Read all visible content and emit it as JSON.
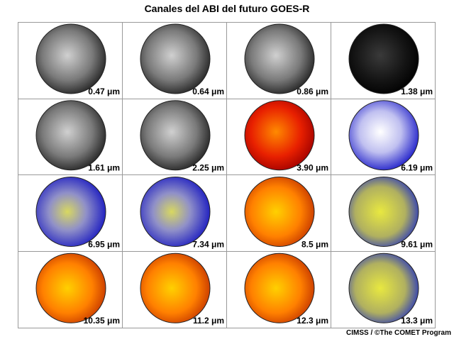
{
  "title": "Canales del ABI del futuro GOES-R",
  "panels": [
    {
      "label": "0.47 μm"
    },
    {
      "label": "0.64 μm"
    },
    {
      "label": "0.86 μm"
    },
    {
      "label": "1.38 μm"
    },
    {
      "label": "1.61 μm"
    },
    {
      "label": "2.25 μm"
    },
    {
      "label": "3.90 μm"
    },
    {
      "label": "6.19 μm"
    },
    {
      "label": "6.95 μm"
    },
    {
      "label": "7.34 μm"
    },
    {
      "label": "8.5 μm"
    },
    {
      "label": "9.61 μm"
    },
    {
      "label": "10.35 μm"
    },
    {
      "label": "11.2 μm"
    },
    {
      "label": "12.3 μm"
    },
    {
      "label": "13.3 μm"
    }
  ],
  "credit": "CIMSS / ©The COMET Program"
}
